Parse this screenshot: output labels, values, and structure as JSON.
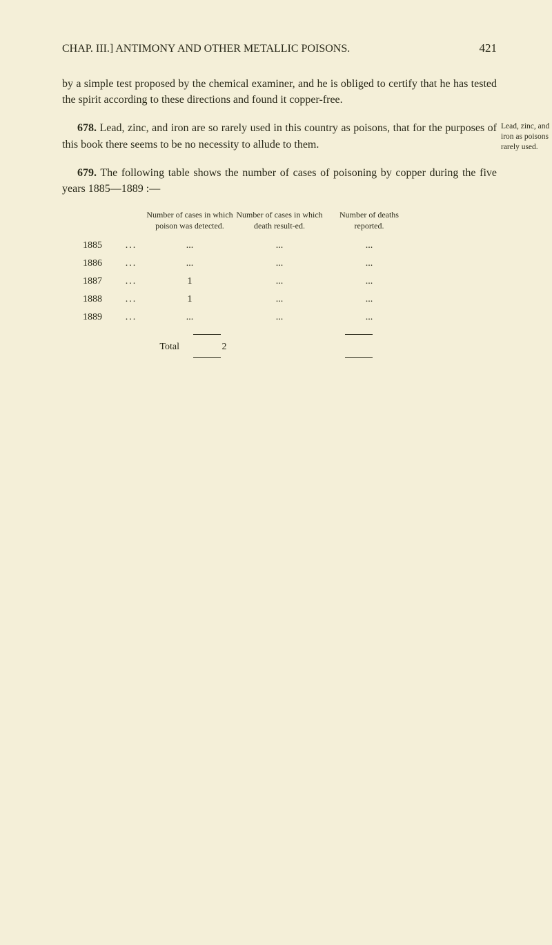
{
  "pageNumber": "421",
  "runningHead": "CHAP. III.]   ANTIMONY AND OTHER METALLIC POISONS.",
  "para1": "by a simple test proposed by the chemical examiner, and he is obliged to certify that he has tested the spirit according to these directions and found it copper-free.",
  "para678": {
    "num": "678.",
    "text": "Lead, zinc, and iron are so rarely used in this country as poisons, that for the purposes of this book there seems to be no necessity to allude to them.",
    "marginNote": "Lead, zinc, and iron as poisons rarely used."
  },
  "para679": {
    "num": "679.",
    "text": "The following table shows the number of cases of poisoning by copper during the five years 1885—1889 :—"
  },
  "table": {
    "headers": {
      "col1": "Number of cases in which poison was detected.",
      "col2": "Number of cases in which death result-ed.",
      "col3": "Number of deaths reported."
    },
    "rows": [
      {
        "year": "1885",
        "c1": "...",
        "c2": "...",
        "c3": "..."
      },
      {
        "year": "1886",
        "c1": "...",
        "c2": "...",
        "c3": "..."
      },
      {
        "year": "1887",
        "c1": "1",
        "c2": "...",
        "c3": "..."
      },
      {
        "year": "1888",
        "c1": "1",
        "c2": "...",
        "c3": "..."
      },
      {
        "year": "1889",
        "c1": "...",
        "c2": "...",
        "c3": "..."
      }
    ],
    "totalLabel": "Total",
    "totalC1": "2"
  }
}
